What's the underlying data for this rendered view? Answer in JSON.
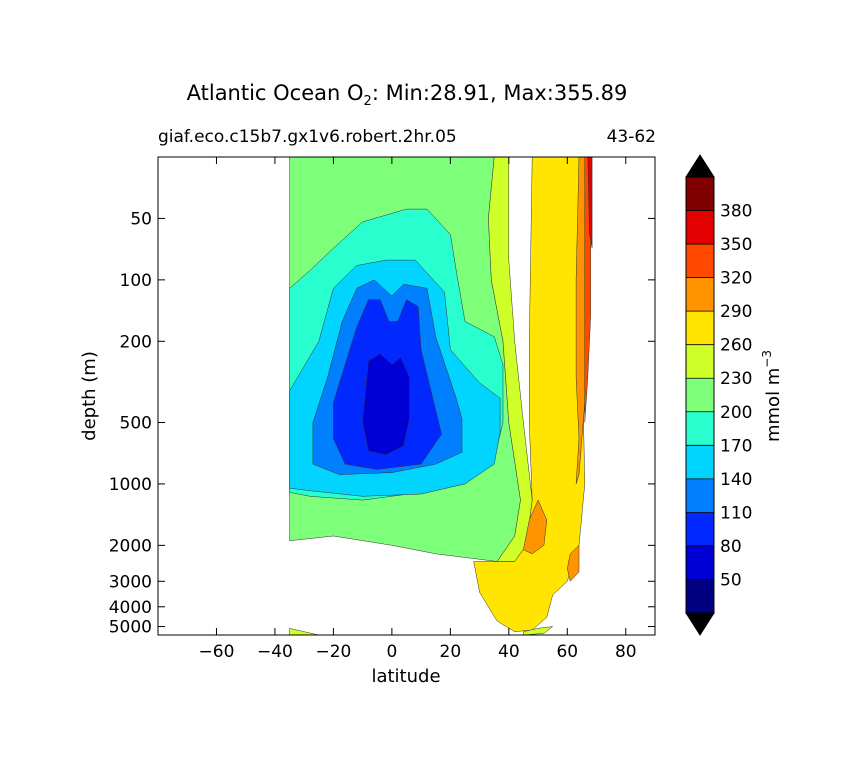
{
  "chart_data": {
    "type": "heatmap",
    "title_main": "Atlantic Ocean O",
    "title_sub": "2",
    "title_rest": ": Min:28.91, Max:355.89",
    "case_name": "giaf.eco.c15b7.gx1v6.robert.2hr.05",
    "years": "43-62",
    "xlabel": "latitude",
    "ylabel": "depth (m)",
    "xlim": [
      -80,
      90
    ],
    "x_ticks": [
      -60,
      -40,
      -20,
      0,
      20,
      40,
      60,
      80
    ],
    "x_tick_labels": [
      "−60",
      "−40",
      "−20",
      "0",
      "20",
      "40",
      "60",
      "80"
    ],
    "y_scale": "log",
    "ylim": [
      5500,
      25
    ],
    "y_ticks": [
      50,
      100,
      200,
      500,
      1000,
      2000,
      3000,
      4000,
      5000
    ],
    "y_tick_labels": [
      "50",
      "100",
      "200",
      "500",
      "1000",
      "2000",
      "3000",
      "4000",
      "5000"
    ],
    "colorbar": {
      "label": "mmol m",
      "label_exp": "−3",
      "levels": [
        20,
        50,
        80,
        110,
        140,
        170,
        200,
        230,
        260,
        290,
        320,
        350,
        380,
        410
      ],
      "tick_labels": [
        "50",
        "80",
        "110",
        "140",
        "170",
        "200",
        "230",
        "260",
        "290",
        "320",
        "350",
        "380"
      ],
      "colors": [
        "#000080",
        "#0000d6",
        "#0028ff",
        "#0080ff",
        "#00d4ff",
        "#29ffce",
        "#7dff7a",
        "#ceff29",
        "#ffe500",
        "#ff9400",
        "#ff4a00",
        "#e30000",
        "#800000"
      ],
      "extend": "both"
    },
    "contour_regions": [
      {
        "level": 200,
        "points": [
          [
            -35,
            25
          ],
          [
            35,
            25
          ],
          [
            33,
            50
          ],
          [
            34,
            100
          ],
          [
            38,
            200
          ],
          [
            40,
            500
          ],
          [
            44,
            1200
          ],
          [
            42,
            1800
          ],
          [
            36,
            2400
          ],
          [
            15,
            2200
          ],
          [
            0,
            2000
          ],
          [
            -20,
            1800
          ],
          [
            -35,
            1900
          ]
        ]
      },
      {
        "level": 230,
        "points": [
          [
            35,
            25
          ],
          [
            40,
            25
          ],
          [
            40,
            80
          ],
          [
            42,
            200
          ],
          [
            45,
            500
          ],
          [
            48,
            1200
          ],
          [
            46,
            2000
          ],
          [
            42,
            2400
          ],
          [
            36,
            2400
          ],
          [
            42,
            1800
          ],
          [
            44,
            1200
          ],
          [
            40,
            500
          ],
          [
            38,
            200
          ],
          [
            34,
            100
          ],
          [
            33,
            50
          ]
        ]
      },
      {
        "level": 170,
        "points": [
          [
            -20,
            70
          ],
          [
            -10,
            52
          ],
          [
            5,
            45
          ],
          [
            12,
            45
          ],
          [
            20,
            60
          ],
          [
            22,
            90
          ],
          [
            25,
            160
          ],
          [
            35,
            190
          ],
          [
            38,
            260
          ],
          [
            38,
            500
          ],
          [
            35,
            750
          ],
          [
            25,
            1000
          ],
          [
            10,
            1100
          ],
          [
            -10,
            1200
          ],
          [
            -28,
            1150
          ],
          [
            -35,
            1100
          ],
          [
            -35,
            110
          ],
          [
            -28,
            90
          ]
        ]
      },
      {
        "level": 140,
        "points": [
          [
            -20,
            110
          ],
          [
            -12,
            85
          ],
          [
            -2,
            80
          ],
          [
            8,
            80
          ],
          [
            18,
            115
          ],
          [
            20,
            220
          ],
          [
            30,
            320
          ],
          [
            37,
            380
          ],
          [
            37,
            560
          ],
          [
            35,
            800
          ],
          [
            25,
            1000
          ],
          [
            10,
            1120
          ],
          [
            -10,
            1150
          ],
          [
            -28,
            1080
          ],
          [
            -35,
            1050
          ],
          [
            -35,
            350
          ],
          [
            -25,
            200
          ]
        ]
      },
      {
        "level": 110,
        "points": [
          [
            -17,
            160
          ],
          [
            -12,
            110
          ],
          [
            -6,
            100
          ],
          [
            0,
            120
          ],
          [
            4,
            105
          ],
          [
            12,
            110
          ],
          [
            15,
            190
          ],
          [
            22,
            380
          ],
          [
            24,
            480
          ],
          [
            24,
            700
          ],
          [
            15,
            800
          ],
          [
            0,
            880
          ],
          [
            -18,
            900
          ],
          [
            -27,
            800
          ],
          [
            -27,
            500
          ],
          [
            -22,
            300
          ]
        ]
      },
      {
        "level": 80,
        "points": [
          [
            -12,
            170
          ],
          [
            -8,
            125
          ],
          [
            -4,
            125
          ],
          [
            -1,
            160
          ],
          [
            2,
            160
          ],
          [
            5,
            125
          ],
          [
            9,
            135
          ],
          [
            10,
            220
          ],
          [
            14,
            380
          ],
          [
            17,
            570
          ],
          [
            10,
            800
          ],
          [
            -5,
            850
          ],
          [
            -16,
            800
          ],
          [
            -20,
            600
          ],
          [
            -20,
            400
          ],
          [
            -16,
            260
          ]
        ]
      },
      {
        "level": 50,
        "points": [
          [
            -8,
            250
          ],
          [
            -4,
            230
          ],
          [
            0,
            260
          ],
          [
            3,
            240
          ],
          [
            6,
            300
          ],
          [
            6,
            480
          ],
          [
            4,
            650
          ],
          [
            -2,
            720
          ],
          [
            -8,
            690
          ],
          [
            -10,
            500
          ]
        ]
      },
      {
        "level": 260,
        "points": [
          [
            48,
            25
          ],
          [
            66,
            25
          ],
          [
            65,
            200
          ],
          [
            66,
            1000
          ],
          [
            64,
            2000
          ],
          [
            60,
            3000
          ],
          [
            55,
            3500
          ],
          [
            53,
            4500
          ],
          [
            48,
            5200
          ],
          [
            42,
            5300
          ],
          [
            36,
            4700
          ],
          [
            30,
            3400
          ],
          [
            28,
            2400
          ],
          [
            36,
            2400
          ],
          [
            42,
            2400
          ],
          [
            46,
            2000
          ],
          [
            48,
            1200
          ],
          [
            47,
            500
          ],
          [
            47,
            200
          ]
        ]
      },
      {
        "level": 290,
        "points": [
          [
            64,
            25
          ],
          [
            67,
            25
          ],
          [
            67,
            200
          ],
          [
            66,
            400
          ],
          [
            65,
            600
          ],
          [
            64,
            900
          ],
          [
            63,
            1000
          ],
          [
            64,
            600
          ],
          [
            63,
            300
          ],
          [
            63,
            100
          ]
        ]
      },
      {
        "level": 290,
        "points": [
          [
            47,
            1500
          ],
          [
            50,
            1200
          ],
          [
            53,
            1500
          ],
          [
            52,
            2000
          ],
          [
            48,
            2200
          ],
          [
            45,
            2100
          ]
        ]
      },
      {
        "level": 290,
        "points": [
          [
            61,
            2200
          ],
          [
            64,
            2000
          ],
          [
            64,
            2700
          ],
          [
            61,
            3000
          ],
          [
            60,
            2600
          ]
        ]
      },
      {
        "level": 320,
        "points": [
          [
            66,
            25
          ],
          [
            68,
            25
          ],
          [
            68,
            150
          ],
          [
            67,
            300
          ],
          [
            66,
            500
          ],
          [
            66,
            300
          ],
          [
            66,
            120
          ]
        ]
      },
      {
        "level": 350,
        "points": [
          [
            67,
            25
          ],
          [
            68.5,
            25
          ],
          [
            68.5,
            70
          ],
          [
            67.6,
            60
          ]
        ]
      },
      {
        "level": 230,
        "points": [
          [
            -35,
            5100
          ],
          [
            -30,
            5300
          ],
          [
            -25,
            5500
          ],
          [
            -35,
            5500
          ]
        ]
      },
      {
        "level": 230,
        "points": [
          [
            45,
            5300
          ],
          [
            50,
            5100
          ],
          [
            55,
            5000
          ],
          [
            52,
            5400
          ],
          [
            45,
            5500
          ]
        ]
      }
    ]
  }
}
